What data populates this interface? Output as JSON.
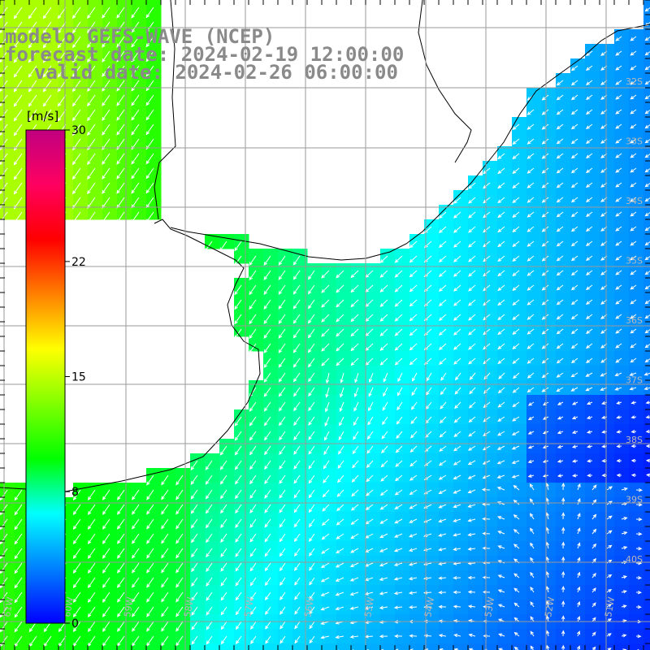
{
  "title": {
    "model": "modelo GEFS-WAVE (NCEP)",
    "forecast": "forecast date: 2024-02-19 12:00:00",
    "valid": "valid date: 2024-02-26 06:00:00"
  },
  "colorbar": {
    "unit": "[m/s]",
    "ticks": [
      {
        "value": 30,
        "label": "30"
      },
      {
        "value": 22,
        "label": "22"
      },
      {
        "value": 15,
        "label": "15"
      },
      {
        "value": 8,
        "label": "8"
      },
      {
        "value": 0,
        "label": "0"
      }
    ],
    "min": 0,
    "max": 30,
    "colors": [
      "#0000ff",
      "#0080ff",
      "#00ffff",
      "#00ff00",
      "#80ff00",
      "#ffff00",
      "#ff8000",
      "#ff0000",
      "#ff0060",
      "#c00080"
    ]
  },
  "map": {
    "lat_labels": [
      "32S",
      "33S",
      "34S",
      "35S",
      "36S",
      "37S",
      "38S",
      "39S",
      "40S"
    ],
    "lon_labels": [
      "61W",
      "60W",
      "59W",
      "58W",
      "57W",
      "56W",
      "55W",
      "54W",
      "53W",
      "52W",
      "51W"
    ],
    "line_color": "#000000",
    "grid_color": "#9a9a9a",
    "label_color": "#b8b8b8"
  },
  "chart_data": {
    "type": "heatmap",
    "title": "modelo GEFS-WAVE (NCEP)",
    "variable_unit": "m/s",
    "value_range": [
      0,
      30
    ],
    "lat_range": [
      "31S",
      "41S"
    ],
    "lon_range": [
      "61W",
      "50W"
    ],
    "notes": [
      "wind speed field with direction arrows"
    ]
  }
}
